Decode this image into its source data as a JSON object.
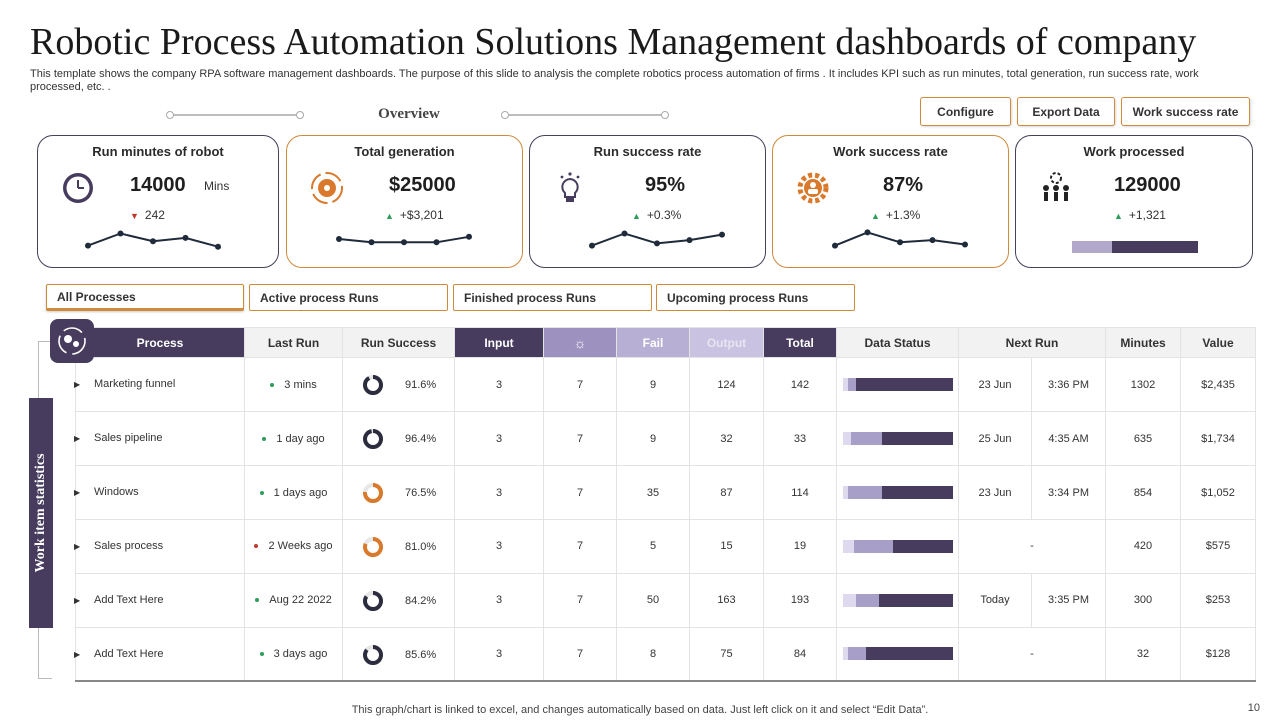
{
  "header": {
    "title": "Robotic Process Automation Solutions Management dashboards of company",
    "description": "This template shows the company RPA software management dashboards. The purpose of this slide to analysis the complete robotics process automation of firms . It includes KPI such as run minutes,  total generation, run success rate, work processed, etc. ."
  },
  "overview_label": "Overview",
  "top_buttons": [
    "Configure",
    "Export Data",
    "Work success rate"
  ],
  "kpis": [
    {
      "title": "Run minutes of robot",
      "value": "14000",
      "unit": "Mins",
      "delta": "242",
      "trend": "down",
      "spark": [
        0.2,
        0.75,
        0.4,
        0.55,
        0.15
      ]
    },
    {
      "title": "Total generation",
      "value": "$25000",
      "unit": "",
      "delta": "+$3,201",
      "trend": "up",
      "spark": [
        0.5,
        0.35,
        0.35,
        0.35,
        0.6
      ]
    },
    {
      "title": "Run success  rate",
      "value": "95%",
      "unit": "",
      "delta": "+0.3%",
      "trend": "up",
      "spark": [
        0.2,
        0.75,
        0.3,
        0.45,
        0.7
      ]
    },
    {
      "title": "Work success  rate",
      "value": "87%",
      "unit": "",
      "delta": "+1.3%",
      "trend": "up",
      "spark": [
        0.2,
        0.8,
        0.35,
        0.45,
        0.25
      ]
    },
    {
      "title": "Work processed",
      "value": "129000",
      "unit": "",
      "delta": "+1,321",
      "trend": "up",
      "progress": 0.32
    }
  ],
  "tabs": [
    "All Processes",
    "Active process Runs",
    "Finished process Runs",
    "Upcoming process Runs"
  ],
  "side_label": "Work item statistics",
  "table": {
    "headers": [
      "Process",
      "Last Run",
      "Run  Success",
      "Input",
      "",
      "Fail",
      "Output",
      "Total",
      "Data Status",
      "Next Run",
      "Minutes",
      "Value"
    ],
    "settings_icon": "gear-icon",
    "rows": [
      {
        "name": "Marketing  funnel",
        "last_run": "3 mins",
        "status_color": "#2e9e5b",
        "success": "91.6%",
        "success_pct": 0.916,
        "ring_color": "#2b2d3f",
        "input": "3",
        "col5": "7",
        "fail": "9",
        "output": "124",
        "total": "142",
        "ds": [
          0.05,
          0.12
        ],
        "next_date": "23 Jun",
        "next_time": "3:36 PM",
        "minutes": "1302",
        "value": "$2,435"
      },
      {
        "name": "Sales pipeline",
        "last_run": "1 day ago",
        "status_color": "#2e9e5b",
        "success": "96.4%",
        "success_pct": 0.964,
        "ring_color": "#2b2d3f",
        "input": "3",
        "col5": "7",
        "fail": "9",
        "output": "32",
        "total": "33",
        "ds": [
          0.08,
          0.36
        ],
        "next_date": "25 Jun",
        "next_time": "4:35 AM",
        "minutes": "635",
        "value": "$1,734"
      },
      {
        "name": "Windows",
        "last_run": "1 days ago",
        "status_color": "#2e9e5b",
        "success": "76.5%",
        "success_pct": 0.765,
        "ring_color": "#d9792b",
        "input": "3",
        "col5": "7",
        "fail": "35",
        "output": "87",
        "total": "114",
        "ds": [
          0.05,
          0.36
        ],
        "next_date": "23 Jun",
        "next_time": "3:34 PM",
        "minutes": "854",
        "value": "$1,052"
      },
      {
        "name": "Sales process",
        "last_run": "2 Weeks ago",
        "status_color": "#c0392b",
        "success": "81.0%",
        "success_pct": 0.81,
        "ring_color": "#d9792b",
        "input": "3",
        "col5": "7",
        "fail": "5",
        "output": "15",
        "total": "19",
        "ds": [
          0.1,
          0.46
        ],
        "next_date": "-",
        "next_time": "",
        "minutes": "420",
        "value": "$575"
      },
      {
        "name": "Add Text Here",
        "last_run": "Aug 22 2022",
        "status_color": "#2e9e5b",
        "success": "84.2%",
        "success_pct": 0.842,
        "ring_color": "#2b2d3f",
        "input": "3",
        "col5": "7",
        "fail": "50",
        "output": "163",
        "total": "193",
        "ds": [
          0.12,
          0.33
        ],
        "next_date": "Today",
        "next_time": "3:35 PM",
        "minutes": "300",
        "value": "$253"
      },
      {
        "name": "Add Text Here",
        "last_run": "3 days ago",
        "status_color": "#2e9e5b",
        "success": "85.6%",
        "success_pct": 0.856,
        "ring_color": "#2b2d3f",
        "input": "3",
        "col5": "7",
        "fail": "8",
        "output": "75",
        "total": "84",
        "ds": [
          0.05,
          0.21
        ],
        "next_date": "-",
        "next_time": "",
        "minutes": "32",
        "value": "$128"
      }
    ]
  },
  "footer": "This graph/chart is linked to excel,  and changes automatically based on data. Just left click on it and select “Edit Data”.",
  "page_number": "10",
  "colors": {
    "dark": "#473c5e",
    "accent": "#d08a3c",
    "green": "#2e9e5b",
    "red": "#c0392b"
  }
}
